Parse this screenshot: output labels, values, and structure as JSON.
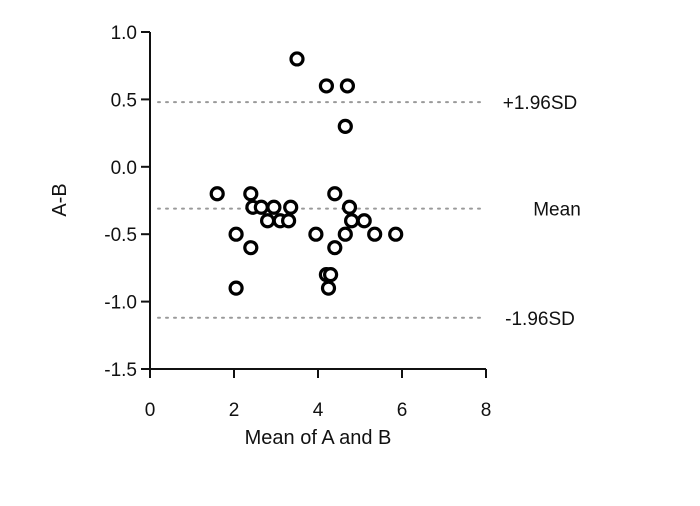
{
  "chart_data": {
    "type": "scatter",
    "title": "",
    "xlabel": "Mean of A and B",
    "ylabel": "A-B",
    "xlim": [
      0,
      8
    ],
    "ylim": [
      -1.5,
      1.0
    ],
    "xticks": [
      0,
      2,
      4,
      6,
      8
    ],
    "xtick_labels": [
      "0",
      "2",
      "4",
      "6",
      "8"
    ],
    "yticks": [
      1.0,
      0.5,
      0.0,
      -0.5,
      -1.0,
      -1.5
    ],
    "ytick_labels": [
      "1.0",
      "0.5",
      "0.0",
      "-0.5",
      "-1.0",
      "-1.5"
    ],
    "grid": false,
    "marker": "open-circle",
    "reference_lines": [
      {
        "label": "+1.96SD",
        "y": 0.48,
        "style": "dotted"
      },
      {
        "label": "Mean",
        "y": -0.31,
        "style": "dotted"
      },
      {
        "label": "-1.96SD",
        "y": -1.12,
        "style": "dotted"
      }
    ],
    "points": [
      {
        "x": 1.6,
        "y": -0.2
      },
      {
        "x": 2.05,
        "y": -0.5
      },
      {
        "x": 2.05,
        "y": -0.9
      },
      {
        "x": 2.4,
        "y": -0.2
      },
      {
        "x": 2.4,
        "y": -0.6
      },
      {
        "x": 2.45,
        "y": -0.3
      },
      {
        "x": 2.65,
        "y": -0.3
      },
      {
        "x": 2.8,
        "y": -0.4
      },
      {
        "x": 2.95,
        "y": -0.3
      },
      {
        "x": 3.1,
        "y": -0.4
      },
      {
        "x": 3.3,
        "y": -0.4
      },
      {
        "x": 3.35,
        "y": -0.3
      },
      {
        "x": 3.5,
        "y": 0.8
      },
      {
        "x": 3.95,
        "y": -0.5
      },
      {
        "x": 4.2,
        "y": 0.6
      },
      {
        "x": 4.2,
        "y": -0.8
      },
      {
        "x": 4.25,
        "y": -0.9
      },
      {
        "x": 4.3,
        "y": -0.8
      },
      {
        "x": 4.4,
        "y": -0.2
      },
      {
        "x": 4.4,
        "y": -0.6
      },
      {
        "x": 4.65,
        "y": 0.3
      },
      {
        "x": 4.65,
        "y": -0.5
      },
      {
        "x": 4.7,
        "y": 0.6
      },
      {
        "x": 4.75,
        "y": -0.3
      },
      {
        "x": 4.8,
        "y": -0.4
      },
      {
        "x": 5.1,
        "y": -0.4
      },
      {
        "x": 5.35,
        "y": -0.5
      },
      {
        "x": 5.85,
        "y": -0.5
      }
    ],
    "colors": {
      "marker": "#000000",
      "axis": "#111111",
      "reference": "#9a9a9a"
    }
  }
}
